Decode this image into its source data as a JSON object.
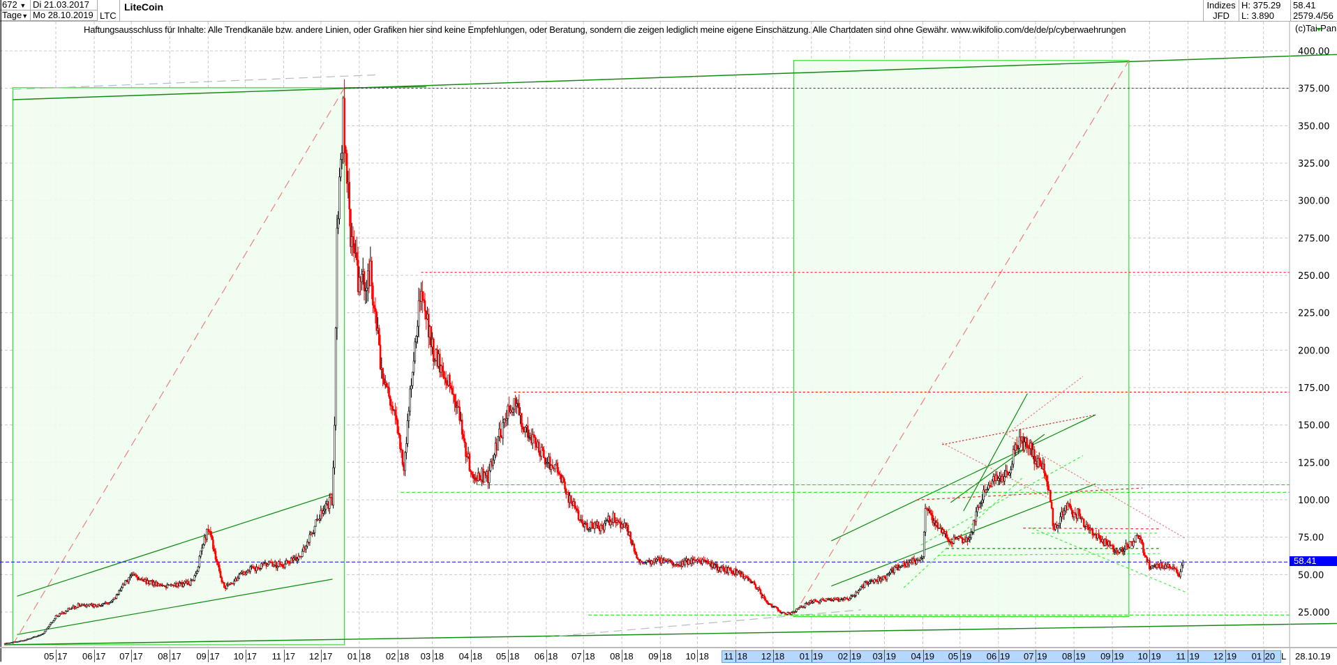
{
  "header": {
    "count": "672",
    "count_arrow": "▼",
    "date_from": "Di 21.03.2017",
    "period": "Tage",
    "period_arrow": "▼",
    "date_to": "Mo 28.10.2019",
    "symbol": "LTC",
    "name": "LiteCoin",
    "index_label": "Indizes",
    "exchange": "JFD",
    "high": "H: 375.29",
    "low": "L: 3.890",
    "last": "58.41",
    "volume": "2579.4/56"
  },
  "disclaimer": "Haftungsausschluss für Inhalte: Alle Trendkanäle bzw. andere Linien, oder Grafiken hier sind keine Empfehlungen, oder Beratung, sondern die zeigen lediglich meine eigene Einschätzung. Alle Chartdaten sind ohne Gewähr.  www.wikifolio.com/de/de/p/cyberwaehrungen",
  "copyright": "(c)Tai-Pan",
  "xaxis": {
    "L": "L",
    "last_date": "28.10.19"
  },
  "chart_data": {
    "type": "candlestick",
    "title": "LiteCoin",
    "ylim": [
      0,
      400
    ],
    "y_ticks": [
      "400.00",
      "375.00",
      "350.00",
      "325.00",
      "300.00",
      "275.00",
      "250.00",
      "225.00",
      "200.00",
      "175.00",
      "150.00",
      "125.00",
      "100.00",
      "75.00",
      "50.00",
      "25.000"
    ],
    "y_tick_values": [
      400,
      375,
      350,
      325,
      300,
      275,
      250,
      225,
      200,
      175,
      150,
      125,
      100,
      75,
      50,
      25
    ],
    "x_labels": [
      "05/17",
      "06/17",
      "07/17",
      "08/17",
      "09/17",
      "10/17",
      "11/17",
      "12/17",
      "01/18",
      "02/18",
      "03/18",
      "04/18",
      "05/18",
      "06/18",
      "07/18",
      "08/18",
      "09/18",
      "10/18",
      "11/18",
      "12/18",
      "01/19",
      "02/19",
      "03/19",
      "04/19",
      "05/19",
      "06/19",
      "07/19",
      "08/19",
      "09/19",
      "10/19",
      "11/19",
      "12/19",
      "01/20"
    ],
    "x_dates": [
      "2017-05-01",
      "2017-06-01",
      "2017-07-01",
      "2017-08-01",
      "2017-09-01",
      "2017-10-01",
      "2017-11-01",
      "2017-12-01",
      "2018-01-01",
      "2018-02-01",
      "2018-03-01",
      "2018-04-01",
      "2018-05-01",
      "2018-06-01",
      "2018-07-01",
      "2018-08-01",
      "2018-09-01",
      "2018-10-01",
      "2018-11-01",
      "2018-12-01",
      "2019-01-01",
      "2019-02-01",
      "2019-03-01",
      "2019-04-01",
      "2019-05-01",
      "2019-06-01",
      "2019-07-01",
      "2019-08-01",
      "2019-09-01",
      "2019-10-01",
      "2019-11-01",
      "2019-12-01",
      "2020-01-01"
    ],
    "highlight_range": [
      "2018-11-01",
      "2020-01-01"
    ],
    "grid": true,
    "up_color": "#000000",
    "down_color": "#ff0000",
    "price_path": [
      [
        "2017-03-21",
        4
      ],
      [
        "2017-04-05",
        6
      ],
      [
        "2017-04-20",
        10
      ],
      [
        "2017-05-01",
        22
      ],
      [
        "2017-05-20",
        30
      ],
      [
        "2017-06-01",
        29
      ],
      [
        "2017-06-15",
        32
      ],
      [
        "2017-07-01",
        50
      ],
      [
        "2017-07-15",
        45
      ],
      [
        "2017-08-01",
        42
      ],
      [
        "2017-08-20",
        45
      ],
      [
        "2017-09-01",
        82
      ],
      [
        "2017-09-14",
        40
      ],
      [
        "2017-10-01",
        52
      ],
      [
        "2017-10-15",
        56
      ],
      [
        "2017-11-01",
        57
      ],
      [
        "2017-11-15",
        62
      ],
      [
        "2017-12-01",
        92
      ],
      [
        "2017-12-10",
        100
      ],
      [
        "2017-12-12",
        150
      ],
      [
        "2017-12-14",
        280
      ],
      [
        "2017-12-19",
        360
      ],
      [
        "2017-12-25",
        280
      ],
      [
        "2018-01-01",
        240
      ],
      [
        "2018-01-10",
        250
      ],
      [
        "2018-01-20",
        180
      ],
      [
        "2018-02-01",
        150
      ],
      [
        "2018-02-06",
        120
      ],
      [
        "2018-02-15",
        210
      ],
      [
        "2018-02-20",
        235
      ],
      [
        "2018-03-01",
        200
      ],
      [
        "2018-03-10",
        185
      ],
      [
        "2018-03-20",
        165
      ],
      [
        "2018-04-01",
        118
      ],
      [
        "2018-04-15",
        115
      ],
      [
        "2018-04-25",
        145
      ],
      [
        "2018-05-05",
        165
      ],
      [
        "2018-05-20",
        140
      ],
      [
        "2018-06-01",
        125
      ],
      [
        "2018-06-10",
        120
      ],
      [
        "2018-06-20",
        100
      ],
      [
        "2018-07-01",
        83
      ],
      [
        "2018-07-15",
        82
      ],
      [
        "2018-07-25",
        88
      ],
      [
        "2018-08-05",
        80
      ],
      [
        "2018-08-15",
        58
      ],
      [
        "2018-09-01",
        60
      ],
      [
        "2018-09-15",
        57
      ],
      [
        "2018-10-01",
        60
      ],
      [
        "2018-10-15",
        55
      ],
      [
        "2018-11-01",
        52
      ],
      [
        "2018-11-15",
        45
      ],
      [
        "2018-11-25",
        32
      ],
      [
        "2018-12-07",
        25
      ],
      [
        "2018-12-15",
        24
      ],
      [
        "2019-01-01",
        32
      ],
      [
        "2019-01-15",
        33
      ],
      [
        "2019-02-01",
        34
      ],
      [
        "2019-02-15",
        45
      ],
      [
        "2019-03-01",
        48
      ],
      [
        "2019-03-15",
        57
      ],
      [
        "2019-04-01",
        60
      ],
      [
        "2019-04-03",
        95
      ],
      [
        "2019-04-15",
        80
      ],
      [
        "2019-04-25",
        72
      ],
      [
        "2019-05-10",
        76
      ],
      [
        "2019-05-15",
        95
      ],
      [
        "2019-05-25",
        110
      ],
      [
        "2019-06-10",
        120
      ],
      [
        "2019-06-15",
        140
      ],
      [
        "2019-06-25",
        135
      ],
      [
        "2019-07-01",
        128
      ],
      [
        "2019-07-10",
        115
      ],
      [
        "2019-07-16",
        80
      ],
      [
        "2019-07-25",
        95
      ],
      [
        "2019-08-05",
        90
      ],
      [
        "2019-08-15",
        78
      ],
      [
        "2019-08-25",
        72
      ],
      [
        "2019-09-05",
        65
      ],
      [
        "2019-09-15",
        70
      ],
      [
        "2019-09-22",
        77
      ],
      [
        "2019-10-01",
        55
      ],
      [
        "2019-10-10",
        57
      ],
      [
        "2019-10-20",
        55
      ],
      [
        "2019-10-25",
        49
      ],
      [
        "2019-10-28",
        58.41
      ]
    ],
    "levels": [
      {
        "value": 375,
        "color": "#333333",
        "style": "dotted"
      },
      {
        "value": 252,
        "color": "#ff0000",
        "style": "dotted"
      },
      {
        "value": 172,
        "color": "#ff0000",
        "style": "dotted"
      },
      {
        "value": 110,
        "color": "#00e000",
        "style": "dashed"
      },
      {
        "value": 105,
        "color": "#00e000",
        "style": "dashed"
      },
      {
        "value": 23,
        "color": "#00e000",
        "style": "dashed"
      },
      {
        "value": 58.41,
        "color": "#0000ff",
        "style": "dashed"
      }
    ],
    "last_price": "58.41"
  }
}
